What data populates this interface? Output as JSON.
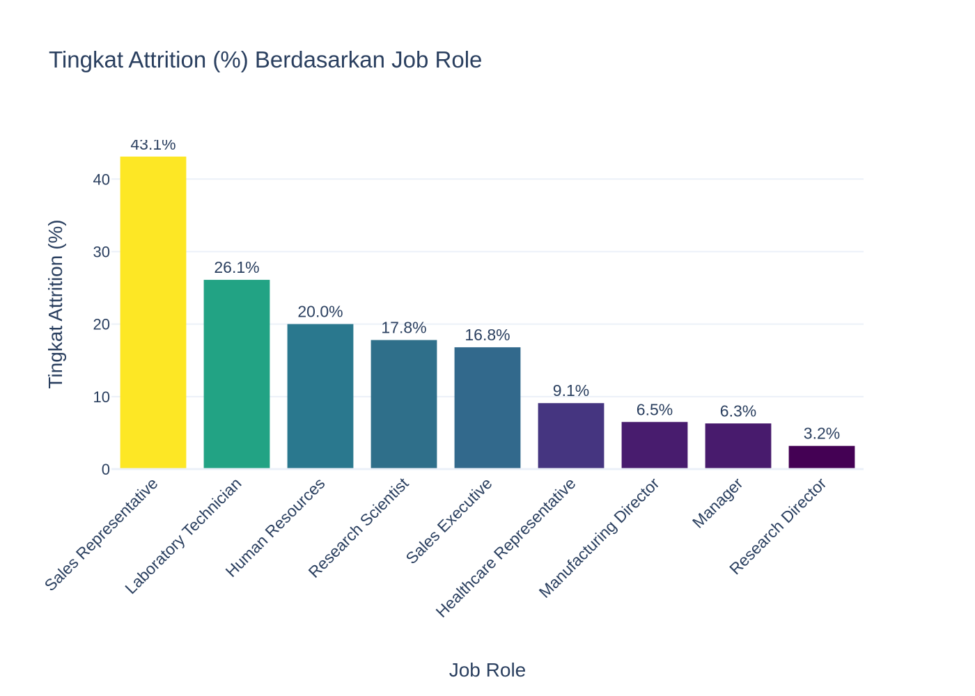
{
  "chart_data": {
    "type": "bar",
    "title": "Tingkat Attrition (%) Berdasarkan Job Role",
    "xlabel": "Job Role",
    "ylabel": "Tingkat Attrition (%)",
    "categories": [
      "Sales Representative",
      "Laboratory Technician",
      "Human Resources",
      "Research Scientist",
      "Sales Executive",
      "Healthcare Representative",
      "Manufacturing Director",
      "Manager",
      "Research Director"
    ],
    "values": [
      43.1,
      26.1,
      20.0,
      17.8,
      16.8,
      9.1,
      6.5,
      6.3,
      3.2
    ],
    "data_labels": [
      "43.1%",
      "26.1%",
      "20.0%",
      "17.8%",
      "16.8%",
      "9.1%",
      "6.5%",
      "6.3%",
      "3.2%"
    ],
    "bar_colors": [
      "#fde725",
      "#22a384",
      "#2a788e",
      "#2f6f8a",
      "#32698c",
      "#453580",
      "#481c6e",
      "#481b6d",
      "#440154"
    ],
    "y_ticks": [
      0,
      10,
      20,
      30,
      40
    ],
    "ylim": [
      0,
      45.4
    ],
    "grid": true,
    "legend": "none"
  }
}
